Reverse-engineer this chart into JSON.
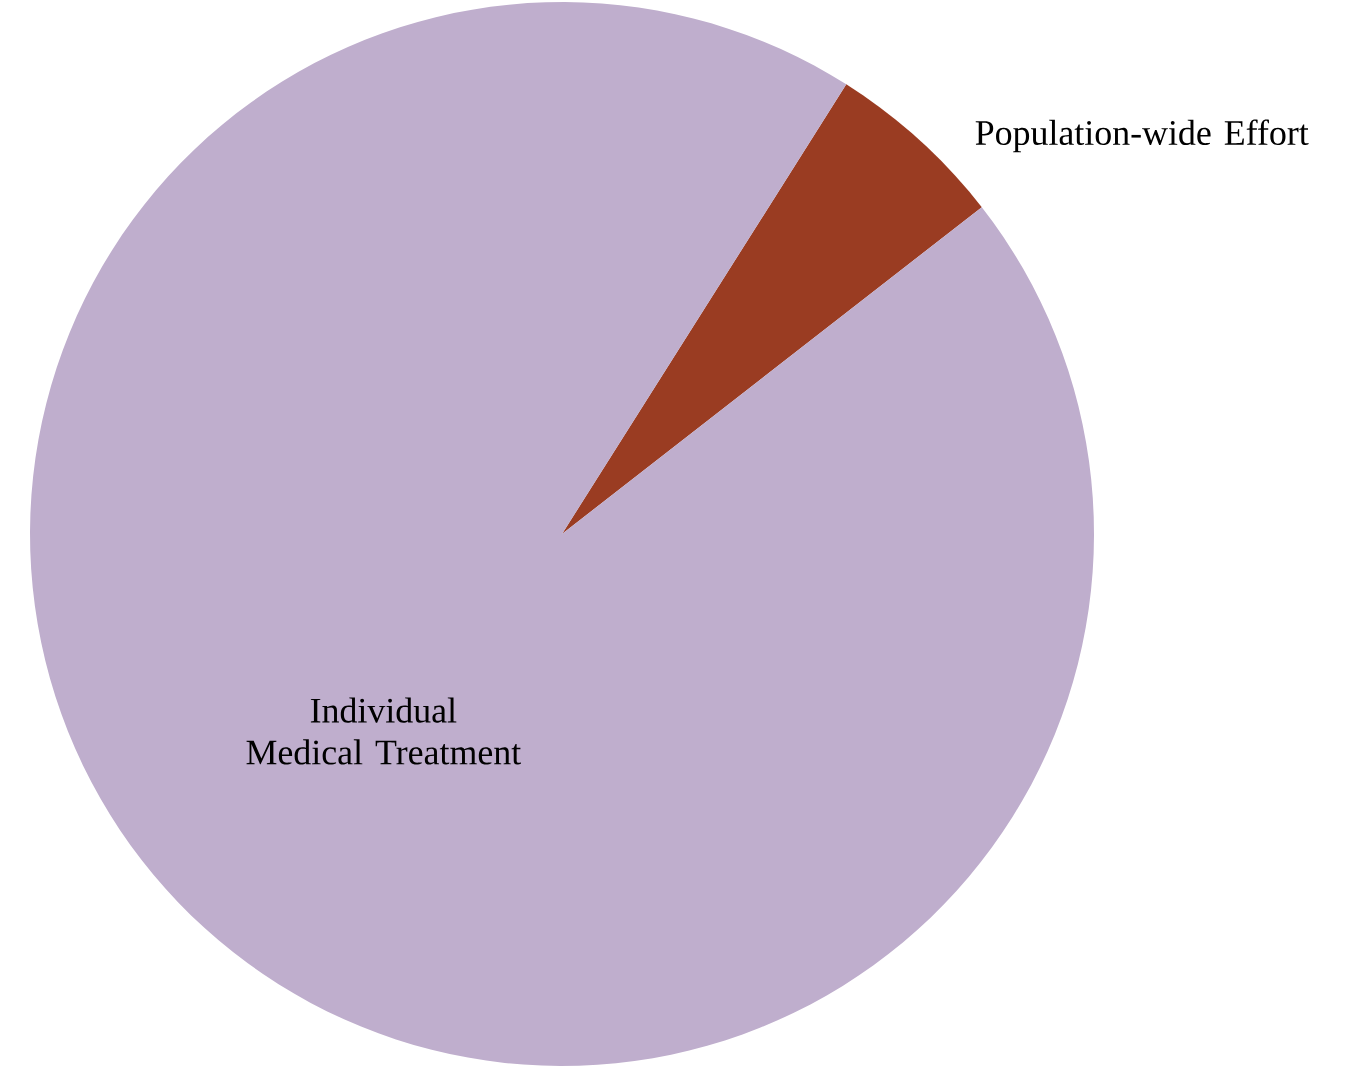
{
  "chart_data": {
    "type": "pie",
    "categories": [
      "Population-wide Effort",
      "Individual Medical Treatment"
    ],
    "values": [
      5.5,
      94.5
    ],
    "colors": [
      "#9a3c22",
      "#bfaecd"
    ]
  }
}
